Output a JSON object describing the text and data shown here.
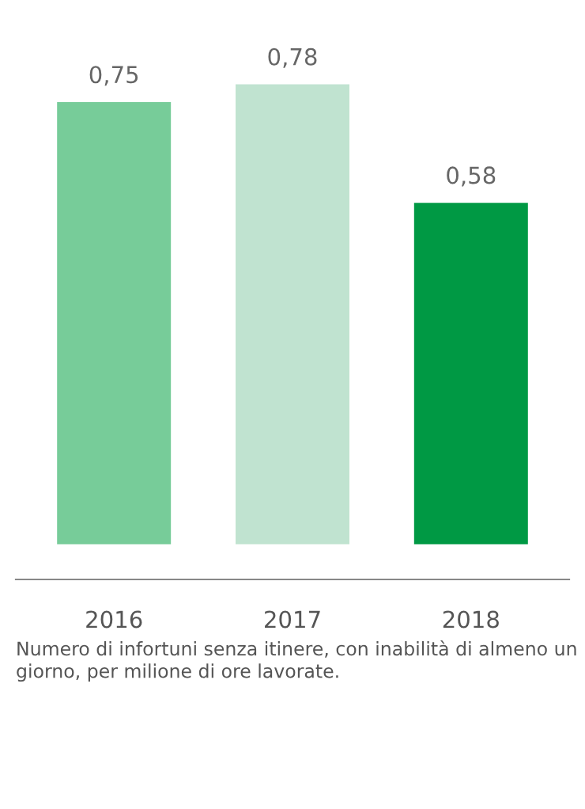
{
  "chart_data": {
    "type": "bar",
    "categories": [
      "2016",
      "2017",
      "2018"
    ],
    "values": [
      0.75,
      0.78,
      0.58
    ],
    "colors": [
      "#77cc99",
      "#c0e3d0",
      "#009944"
    ],
    "value_labels": [
      "0,75",
      "0,78",
      "0,58"
    ],
    "grid": false,
    "legend": false,
    "tick_labels": "x",
    "annotations": [
      "Numero di infortuni senza itinere, con inabilità di almeno un giorno, per milione di ore lavorate."
    ]
  }
}
